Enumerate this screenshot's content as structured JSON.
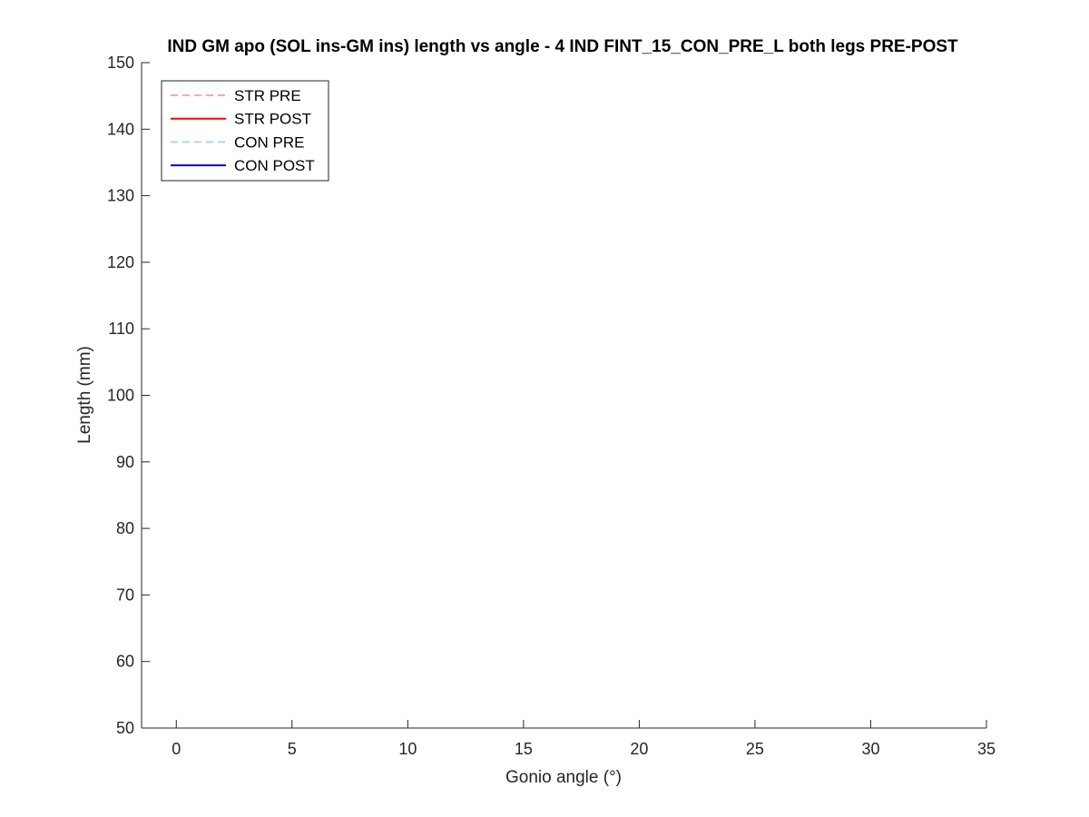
{
  "chart_data": {
    "type": "line",
    "title": "IND GM apo (SOL ins-GM ins) length vs angle - 4 IND FINT_15_CON_PRE_L both legs PRE-POST",
    "xlabel": "Gonio angle (°)",
    "ylabel": "Length (mm)",
    "xlim": [
      -1.5,
      35
    ],
    "ylim": [
      50,
      150
    ],
    "x_ticks": [
      0,
      5,
      10,
      15,
      20,
      25,
      30,
      35
    ],
    "x_tick_labels": [
      "0",
      "5",
      "10",
      "15",
      "20",
      "25",
      "30",
      "35"
    ],
    "y_ticks": [
      50,
      60,
      70,
      80,
      90,
      100,
      110,
      120,
      130,
      140,
      150
    ],
    "y_tick_labels": [
      "50",
      "60",
      "70",
      "80",
      "90",
      "100",
      "110",
      "120",
      "130",
      "140",
      "150"
    ],
    "grid": false,
    "legend_position": "top-left",
    "series": [
      {
        "name": "STR PRE",
        "color": "#ffa0c8",
        "line_style": "dashed",
        "x": [],
        "y": []
      },
      {
        "name": "STR POST",
        "color": "#ff0000",
        "line_style": "solid",
        "x": [],
        "y": []
      },
      {
        "name": "CON PRE",
        "color": "#add8e6",
        "line_style": "dashed",
        "x": [],
        "y": []
      },
      {
        "name": "CON POST",
        "color": "#0000cd",
        "line_style": "solid",
        "x": [],
        "y": []
      }
    ]
  }
}
